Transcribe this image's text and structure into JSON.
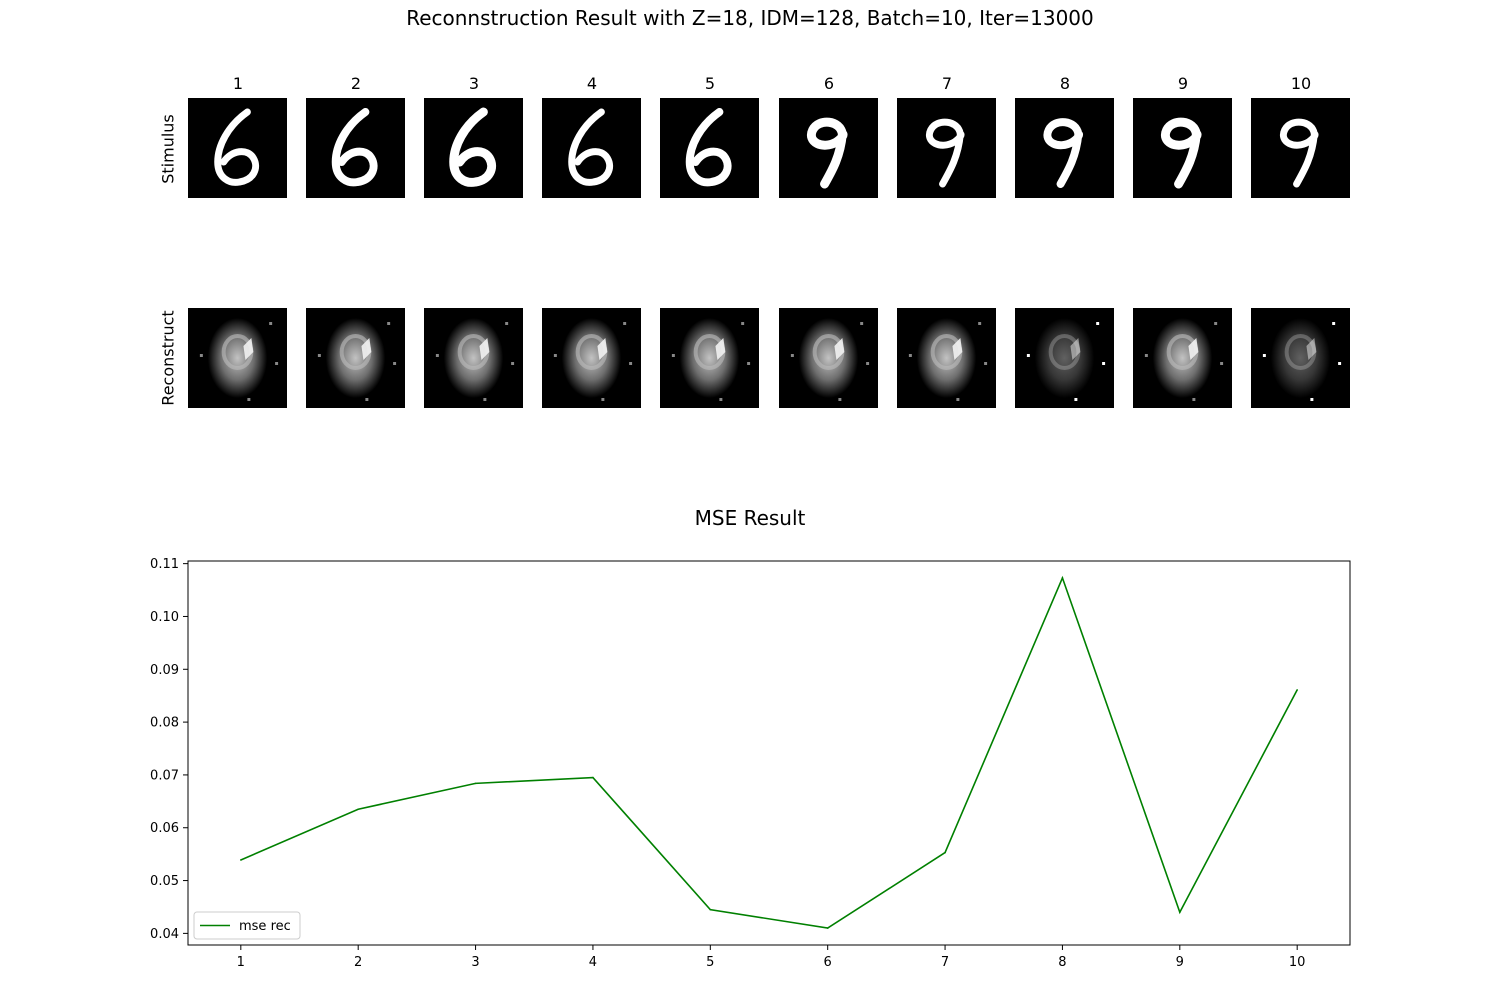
{
  "figure": {
    "title": "Reconnstruction Result with Z=18, IDM=128, Batch=10, Iter=13000",
    "column_labels": [
      "1",
      "2",
      "3",
      "4",
      "5",
      "6",
      "7",
      "8",
      "9",
      "10"
    ],
    "row_labels": {
      "stimulus": "Stimulus",
      "reconstruct": "Reconstruct"
    },
    "stimulus_digits": [
      "6",
      "6",
      "6",
      "6",
      "6",
      "9",
      "9",
      "9",
      "9",
      "9"
    ]
  },
  "chart_data": {
    "type": "line",
    "title": "MSE Result",
    "xlabel": "",
    "ylabel": "",
    "x": [
      1,
      2,
      3,
      4,
      5,
      6,
      7,
      8,
      9,
      10
    ],
    "xticks": [
      "1",
      "2",
      "3",
      "4",
      "5",
      "6",
      "7",
      "8",
      "9",
      "10"
    ],
    "yticks": [
      "0.04",
      "0.05",
      "0.06",
      "0.07",
      "0.08",
      "0.09",
      "0.10",
      "0.11"
    ],
    "ylim": [
      0.0378,
      0.1105
    ],
    "xlim": [
      0.55,
      10.45
    ],
    "series": [
      {
        "name": "mse rec",
        "color": "#008000",
        "values": [
          0.0539,
          0.0635,
          0.0684,
          0.0695,
          0.0445,
          0.041,
          0.0553,
          0.1073,
          0.044,
          0.0861
        ]
      }
    ],
    "legend": "lower-left",
    "grid": false
  }
}
